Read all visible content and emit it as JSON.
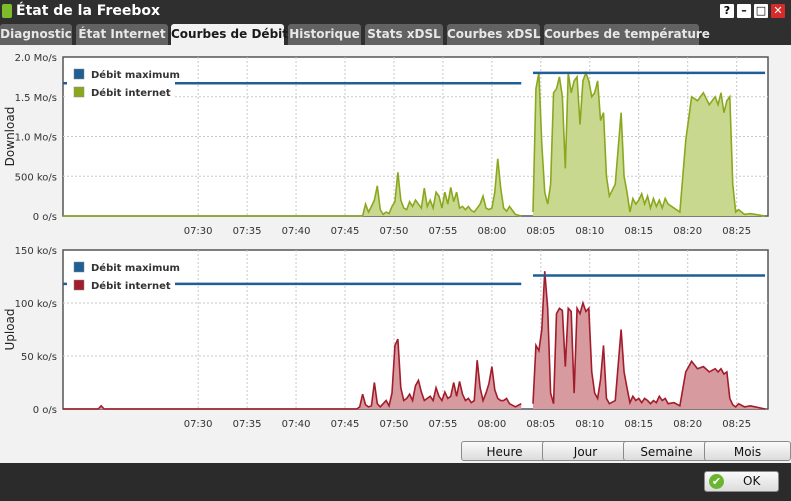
{
  "window": {
    "title": "État de la Freebox",
    "help_label": "?",
    "minimize_label": "–",
    "maximize_label": "□",
    "close_label": "✕"
  },
  "tabs": [
    {
      "label": "Diagnostic",
      "active": false
    },
    {
      "label": "État Internet",
      "active": false
    },
    {
      "label": "Courbes de Débit",
      "active": true
    },
    {
      "label": "Historique",
      "active": false
    },
    {
      "label": "Stats xDSL",
      "active": false
    },
    {
      "label": "Courbes xDSL",
      "active": false
    },
    {
      "label": "Courbes de température",
      "active": false
    }
  ],
  "colors": {
    "max_line": "#1f5f96",
    "download": "#8aa81e",
    "download_fill": "#c8d98f",
    "upload": "#a31c2b",
    "upload_fill": "#d69a9f"
  },
  "chart_data": [
    {
      "type": "area",
      "ylabel": "Download",
      "y_ticks": [
        "0 o/s",
        "500 ko/s",
        "1.0 Mo/s",
        "1.5 Mo/s",
        "2.0 Mo/s"
      ],
      "ylim": [
        0,
        2.0
      ],
      "x_ticks": [
        "07:30",
        "07:35",
        "07:40",
        "07:45",
        "07:50",
        "07:55",
        "08:00",
        "08:05",
        "08:10",
        "08:15",
        "08:20",
        "08:25"
      ],
      "xlim": [
        7.27,
        8.47
      ],
      "legend": [
        "Débit maximum",
        "Débit internet"
      ],
      "legend_position": "top-left",
      "grid": true,
      "max_segments": [
        {
          "x": [
            7.27,
            8.05
          ],
          "y": 1.67
        },
        {
          "x": [
            8.07,
            8.465
          ],
          "y": 1.8
        }
      ],
      "segments": [
        {
          "x": [
            7.27,
            7.5,
            7.78,
            7.785,
            7.79,
            7.795,
            7.8,
            7.805,
            7.81,
            7.815,
            7.82,
            7.825,
            7.83,
            7.835,
            7.84,
            7.845,
            7.85,
            7.855,
            7.86,
            7.865,
            7.87,
            7.875,
            7.88,
            7.885,
            7.89,
            7.895,
            7.9,
            7.905,
            7.91,
            7.915,
            7.92,
            7.925,
            7.93,
            7.935,
            7.94,
            7.945,
            7.95,
            7.955,
            7.96,
            7.965,
            7.97,
            7.975,
            7.98,
            7.985,
            7.99,
            7.995,
            8.0,
            8.005,
            8.01,
            8.015,
            8.02,
            8.025,
            8.03,
            8.04,
            8.05
          ],
          "y": [
            0,
            0,
            0,
            0.15,
            0.05,
            0.12,
            0.2,
            0.38,
            0.08,
            0.02,
            0.05,
            0.03,
            0.12,
            0.18,
            0.55,
            0.2,
            0.1,
            0.08,
            0.18,
            0.12,
            0.2,
            0.15,
            0.1,
            0.35,
            0.12,
            0.2,
            0.1,
            0.3,
            0.25,
            0.1,
            0.3,
            0.15,
            0.36,
            0.18,
            0.3,
            0.1,
            0.12,
            0.08,
            0.12,
            0.07,
            0.05,
            0.1,
            0.15,
            0.25,
            0.1,
            0.08,
            0.1,
            0.3,
            0.72,
            0.35,
            0.1,
            0.06,
            0.12,
            0.02,
            0
          ]
        },
        {
          "x": [
            8.07,
            8.075,
            8.08,
            8.085,
            8.09,
            8.095,
            8.1,
            8.105,
            8.11,
            8.115,
            8.12,
            8.125,
            8.13,
            8.135,
            8.14,
            8.145,
            8.15,
            8.155,
            8.16,
            8.165,
            8.17,
            8.175,
            8.18,
            8.185,
            8.19,
            8.195,
            8.2,
            8.21,
            8.22,
            8.225,
            8.23,
            8.235,
            8.24,
            8.245,
            8.25,
            8.255,
            8.26,
            8.265,
            8.27,
            8.275,
            8.28,
            8.285,
            8.29,
            8.295,
            8.3,
            8.31,
            8.32,
            8.33,
            8.34,
            8.35,
            8.36,
            8.37,
            8.38,
            8.385,
            8.39,
            8.395,
            8.4,
            8.405,
            8.41,
            8.415,
            8.42,
            8.43,
            8.44,
            8.465
          ],
          "y": [
            0.05,
            1.6,
            1.8,
            0.9,
            0.3,
            0.15,
            0.4,
            1.55,
            1.6,
            1.75,
            1.5,
            0.6,
            1.8,
            1.55,
            1.7,
            1.75,
            1.15,
            1.7,
            1.8,
            1.7,
            1.5,
            1.55,
            1.7,
            1.2,
            1.3,
            0.5,
            0.25,
            0.4,
            1.3,
            0.5,
            0.3,
            0.05,
            0.22,
            0.15,
            0.2,
            0.28,
            0.15,
            0.25,
            0.1,
            0.22,
            0.12,
            0.2,
            0.1,
            0.22,
            0.15,
            0.1,
            0.05,
            0.95,
            1.5,
            1.45,
            1.55,
            1.4,
            1.5,
            1.4,
            1.55,
            1.3,
            1.45,
            1.5,
            0.4,
            0.05,
            0.08,
            0.02,
            0.03,
            0
          ]
        }
      ]
    },
    {
      "type": "area",
      "ylabel": "Upload",
      "y_ticks": [
        "0 o/s",
        "50 ko/s",
        "100 ko/s",
        "150 ko/s"
      ],
      "ylim": [
        0,
        150
      ],
      "x_ticks": [
        "07:30",
        "07:35",
        "07:40",
        "07:45",
        "07:50",
        "07:55",
        "08:00",
        "08:05",
        "08:10",
        "08:15",
        "08:20",
        "08:25"
      ],
      "xlim": [
        7.27,
        8.47
      ],
      "legend": [
        "Débit maximum",
        "Débit internet"
      ],
      "legend_position": "top-left",
      "grid": true,
      "max_segments": [
        {
          "x": [
            7.27,
            8.05
          ],
          "y": 118
        },
        {
          "x": [
            8.07,
            8.465
          ],
          "y": 126
        }
      ],
      "segments": [
        {
          "x": [
            7.27,
            7.3,
            7.33,
            7.335,
            7.34,
            7.4,
            7.45,
            7.5,
            7.55,
            7.6,
            7.65,
            7.7,
            7.76,
            7.77,
            7.775,
            7.78,
            7.785,
            7.79,
            7.795,
            7.8,
            7.805,
            7.81,
            7.815,
            7.82,
            7.825,
            7.83,
            7.835,
            7.84,
            7.845,
            7.85,
            7.855,
            7.86,
            7.865,
            7.87,
            7.875,
            7.88,
            7.885,
            7.89,
            7.895,
            7.9,
            7.905,
            7.91,
            7.915,
            7.92,
            7.925,
            7.93,
            7.935,
            7.94,
            7.945,
            7.95,
            7.955,
            7.96,
            7.965,
            7.97,
            7.975,
            7.98,
            7.985,
            7.99,
            7.995,
            8.0,
            8.005,
            8.01,
            8.015,
            8.02,
            8.025,
            8.03,
            8.04,
            8.05
          ],
          "y": [
            0,
            0,
            0,
            3,
            0,
            0,
            0,
            0,
            0,
            0,
            0,
            0,
            0,
            0,
            2,
            14,
            4,
            2,
            3,
            25,
            5,
            2,
            5,
            8,
            3,
            15,
            60,
            66,
            20,
            8,
            10,
            14,
            8,
            22,
            27,
            16,
            8,
            10,
            12,
            8,
            20,
            12,
            8,
            16,
            10,
            12,
            25,
            12,
            26,
            14,
            8,
            10,
            6,
            8,
            46,
            20,
            8,
            15,
            24,
            40,
            18,
            10,
            8,
            8,
            10,
            5,
            2,
            5
          ]
        },
        {
          "x": [
            8.07,
            8.075,
            8.08,
            8.085,
            8.09,
            8.095,
            8.1,
            8.105,
            8.11,
            8.115,
            8.12,
            8.125,
            8.13,
            8.135,
            8.14,
            8.145,
            8.15,
            8.155,
            8.16,
            8.165,
            8.17,
            8.175,
            8.18,
            8.185,
            8.19,
            8.195,
            8.2,
            8.21,
            8.22,
            8.225,
            8.23,
            8.235,
            8.24,
            8.245,
            8.25,
            8.255,
            8.26,
            8.265,
            8.27,
            8.275,
            8.28,
            8.285,
            8.29,
            8.295,
            8.3,
            8.31,
            8.32,
            8.33,
            8.34,
            8.35,
            8.36,
            8.37,
            8.38,
            8.385,
            8.39,
            8.395,
            8.4,
            8.405,
            8.41,
            8.415,
            8.42,
            8.43,
            8.44,
            8.465
          ],
          "y": [
            5,
            60,
            55,
            75,
            130,
            95,
            15,
            5,
            90,
            95,
            93,
            40,
            95,
            92,
            15,
            95,
            90,
            100,
            92,
            95,
            35,
            15,
            10,
            28,
            60,
            10,
            5,
            8,
            75,
            35,
            20,
            6,
            12,
            8,
            10,
            6,
            10,
            8,
            5,
            8,
            6,
            12,
            8,
            10,
            5,
            6,
            3,
            35,
            45,
            38,
            40,
            35,
            38,
            35,
            38,
            33,
            35,
            10,
            4,
            2,
            5,
            2,
            3,
            0
          ]
        }
      ]
    }
  ],
  "range_buttons": [
    "Heure",
    "Jour",
    "Semaine",
    "Mois"
  ],
  "ok_label": "OK"
}
